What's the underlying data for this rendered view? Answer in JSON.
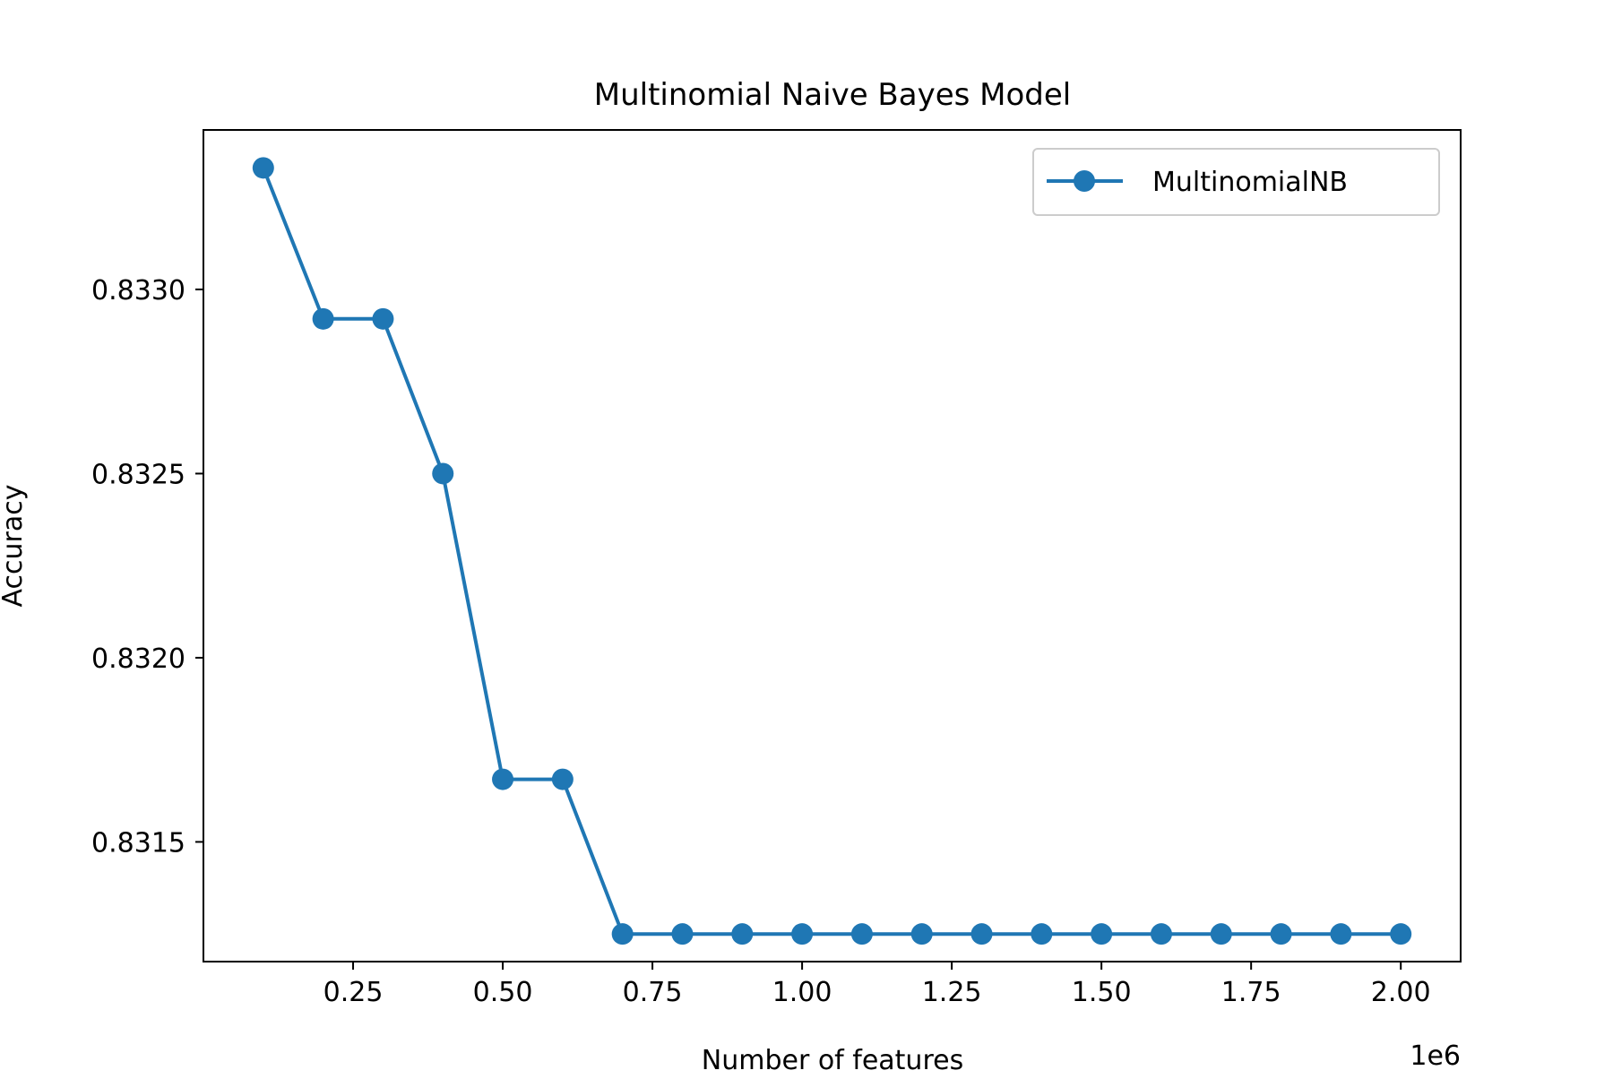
{
  "chart_data": {
    "type": "line",
    "title": "Multinomial Naive Bayes Model",
    "xlabel": "Number of features",
    "ylabel": "Accuracy",
    "x_offset_label": "1e6",
    "x_scale": 1000000,
    "xlim": [
      0,
      2100000
    ],
    "ylim": [
      0.831175,
      0.833433
    ],
    "x_ticks": [
      250000,
      500000,
      750000,
      1000000,
      1250000,
      1500000,
      1750000,
      2000000
    ],
    "x_tick_labels": [
      "0.25",
      "0.50",
      "0.75",
      "1.00",
      "1.25",
      "1.50",
      "1.75",
      "2.00"
    ],
    "y_ticks": [
      0.8315,
      0.832,
      0.8325,
      0.833
    ],
    "y_tick_labels": [
      "0.8315",
      "0.8320",
      "0.8325",
      "0.8330"
    ],
    "grid": false,
    "legend_position": "top-right",
    "x": [
      100000,
      200000,
      300000,
      400000,
      500000,
      600000,
      700000,
      800000,
      900000,
      1000000,
      1100000,
      1200000,
      1300000,
      1400000,
      1500000,
      1600000,
      1700000,
      1800000,
      1900000,
      2000000
    ],
    "series": [
      {
        "name": "MultinomialNB",
        "color": "#1f77b4",
        "marker": "circle",
        "values": [
          0.83333,
          0.83292,
          0.83292,
          0.8325,
          0.83167,
          0.83167,
          0.83125,
          0.83125,
          0.83125,
          0.83125,
          0.83125,
          0.83125,
          0.83125,
          0.83125,
          0.83125,
          0.83125,
          0.83125,
          0.83125,
          0.83125,
          0.83125
        ]
      }
    ]
  }
}
